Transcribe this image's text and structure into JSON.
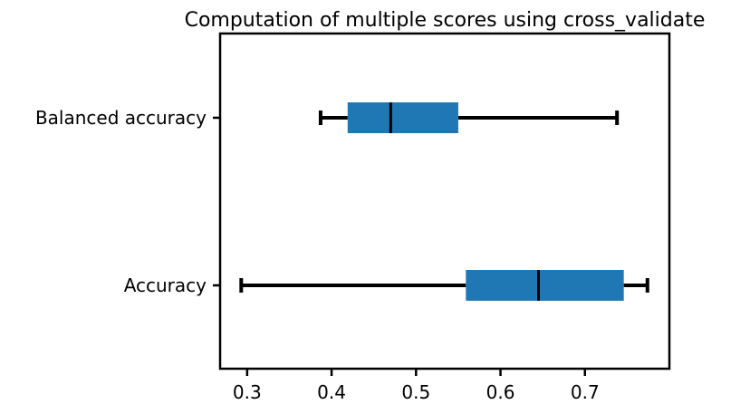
{
  "chart_data": {
    "type": "boxplot",
    "orientation": "horizontal",
    "title": "Computation of multiple scores using cross_validate",
    "xlabel": "",
    "ylabel": "",
    "xlim": [
      0.268,
      0.8
    ],
    "xticks": [
      0.3,
      0.4,
      0.5,
      0.6,
      0.7
    ],
    "xtick_labels": [
      "0.3",
      "0.4",
      "0.5",
      "0.6",
      "0.7"
    ],
    "grid": false,
    "box_color": "#1f77b4",
    "categories": [
      "Accuracy",
      "Balanced accuracy"
    ],
    "boxes": [
      {
        "label": "Accuracy",
        "whisker_low": 0.293,
        "q1": 0.559,
        "median": 0.645,
        "q3": 0.746,
        "whisker_high": 0.774
      },
      {
        "label": "Balanced accuracy",
        "whisker_low": 0.387,
        "q1": 0.419,
        "median": 0.47,
        "q3": 0.55,
        "whisker_high": 0.738
      }
    ]
  }
}
